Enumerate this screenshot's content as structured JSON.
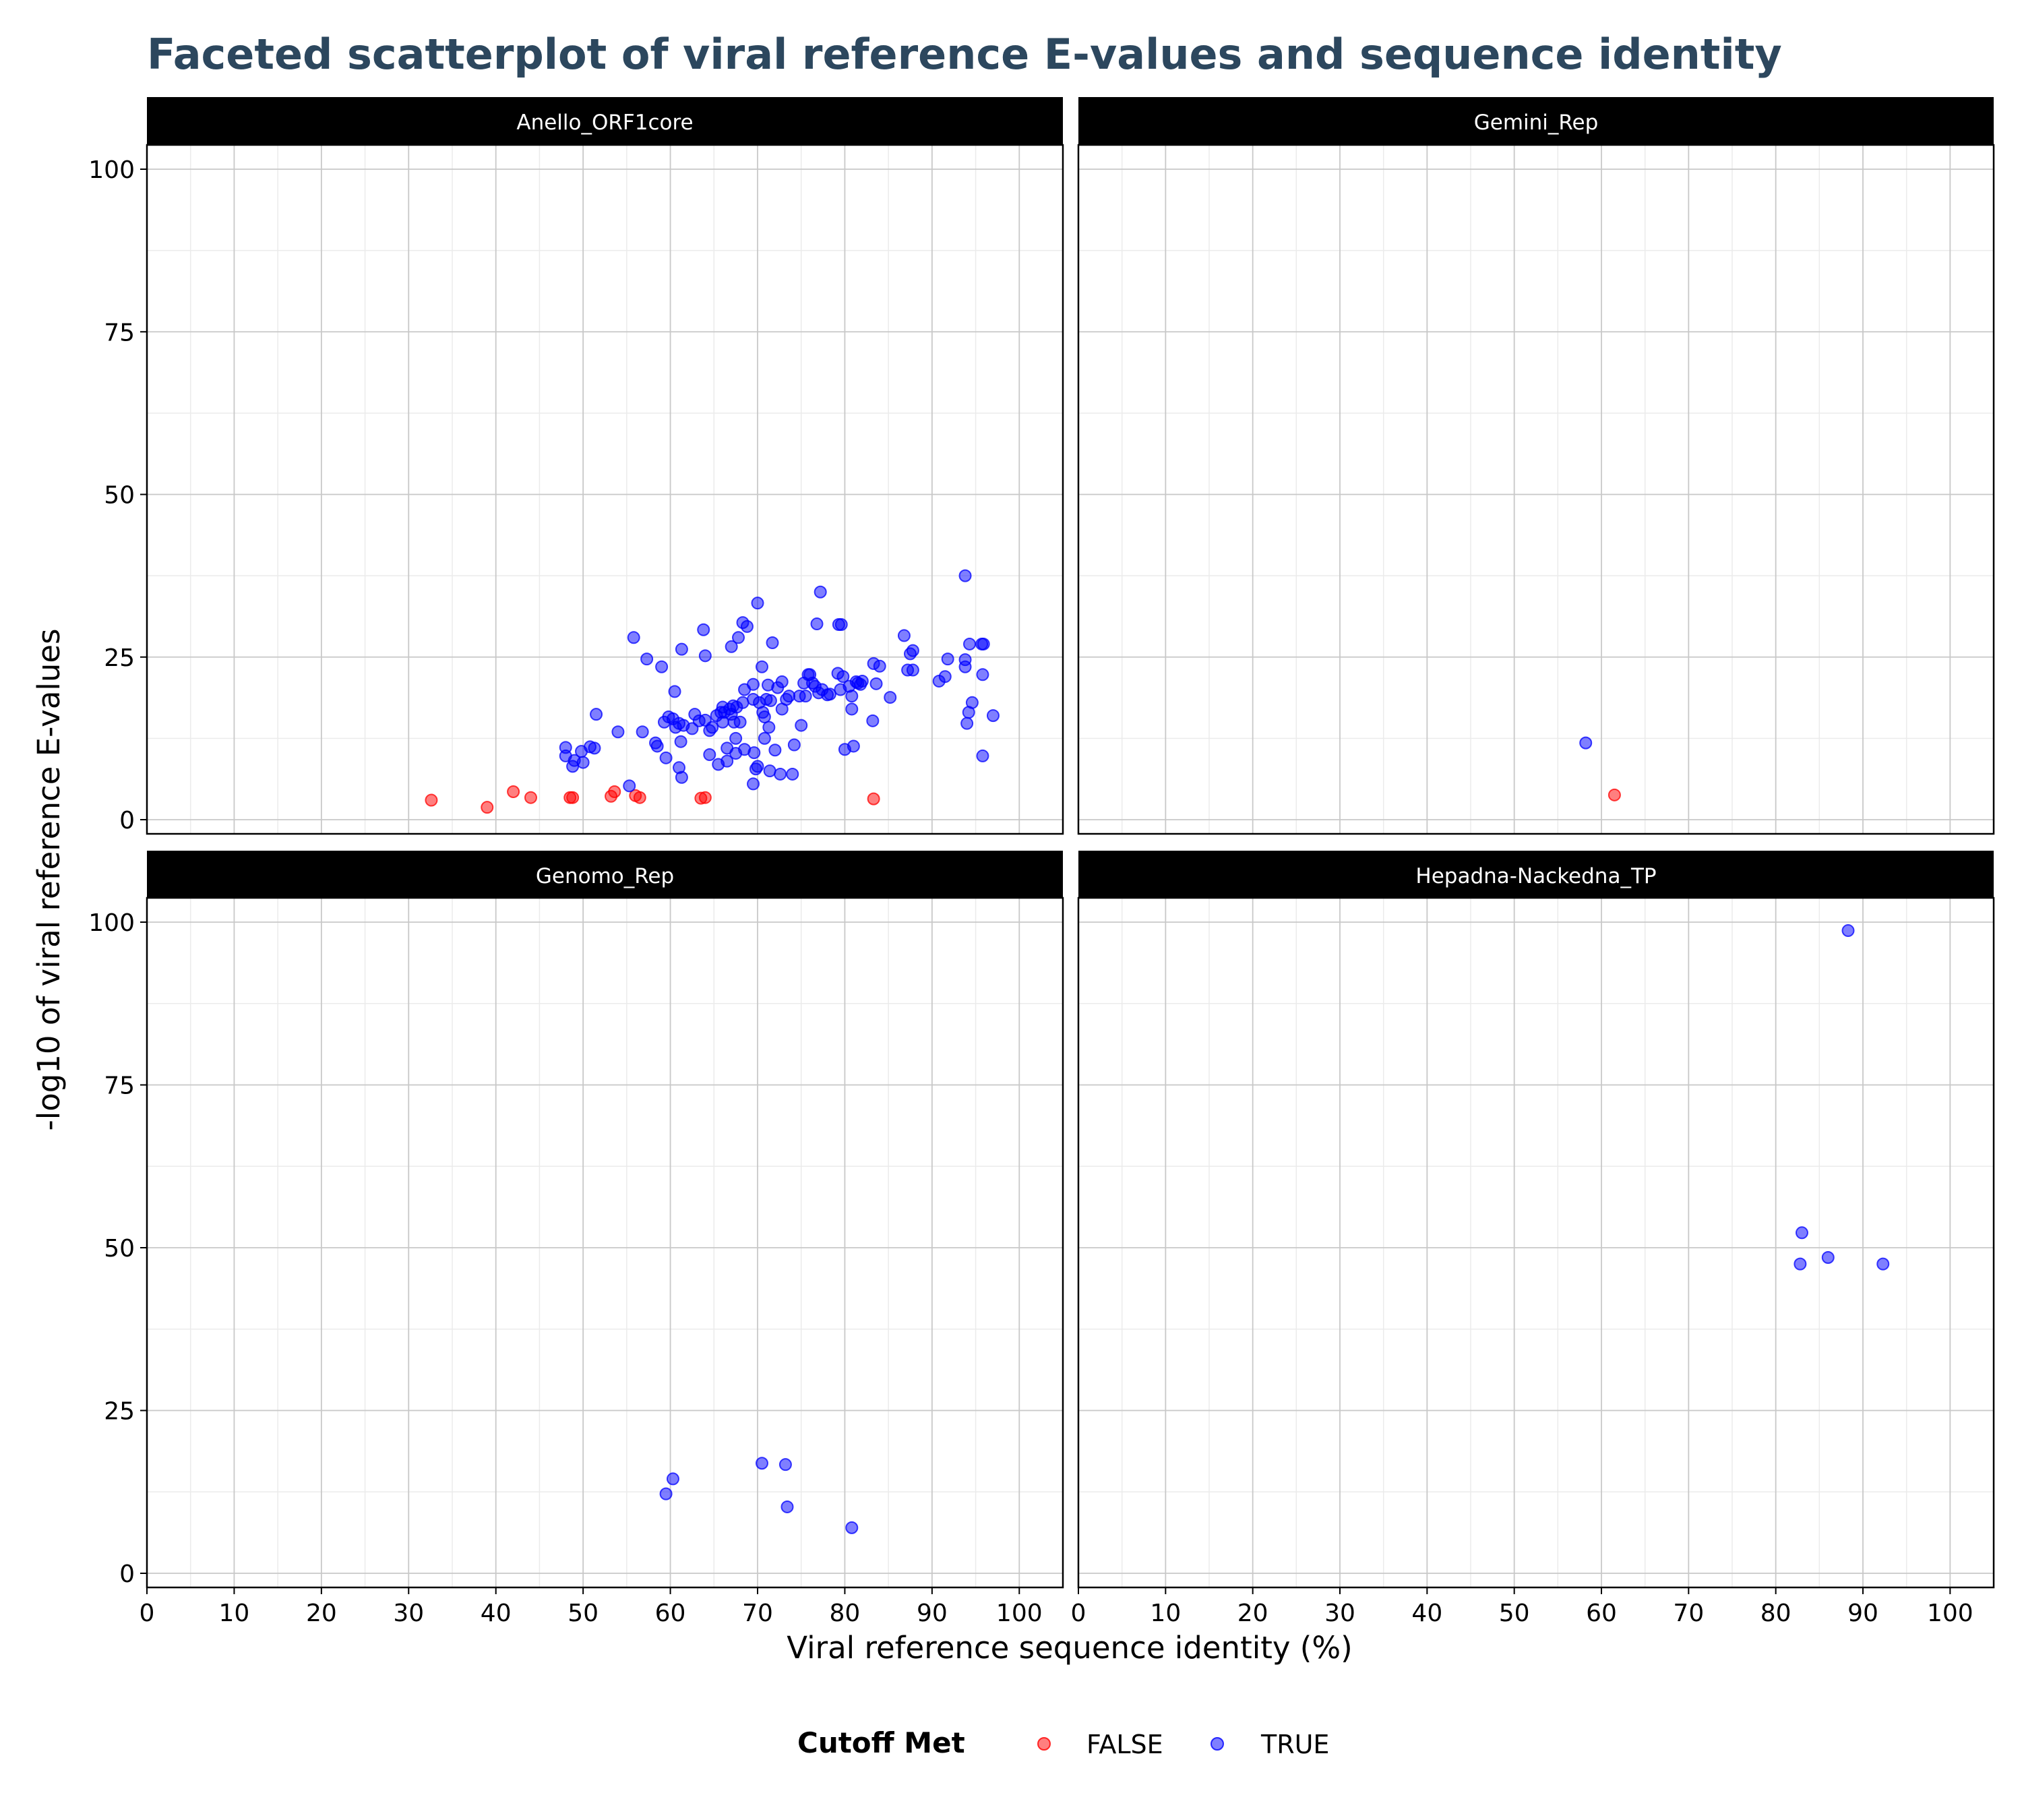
{
  "chart_data": {
    "type": "scatter",
    "title": "Faceted scatterplot of viral reference E-values and sequence identity",
    "xlabel": "Viral reference sequence identity (%)",
    "ylabel": "-log10 of viral reference E-values",
    "xlim": [
      0,
      105
    ],
    "ylim": [
      0,
      100
    ],
    "x_ticks": [
      "0",
      "10",
      "20",
      "30",
      "40",
      "50",
      "60",
      "70",
      "80",
      "90",
      "100"
    ],
    "y_ticks": [
      "0",
      "25",
      "50",
      "75",
      "100"
    ],
    "grid": true,
    "legend": {
      "title": "Cutoff Met",
      "position": "bottom",
      "entries": [
        {
          "label": "FALSE",
          "color": "#FF0000"
        },
        {
          "label": "TRUE",
          "color": "#0000FF"
        }
      ]
    },
    "colors": {
      "FALSE": "#FF0000",
      "TRUE": "#0000FF"
    },
    "facets": [
      {
        "name": "Anello_ORF1core",
        "points": [
          {
            "x": 32.6,
            "y": 3.0,
            "c": "FALSE"
          },
          {
            "x": 39.0,
            "y": 1.9,
            "c": "FALSE"
          },
          {
            "x": 42.0,
            "y": 4.3,
            "c": "FALSE"
          },
          {
            "x": 44.0,
            "y": 3.4,
            "c": "FALSE"
          },
          {
            "x": 48.5,
            "y": 3.4,
            "c": "FALSE"
          },
          {
            "x": 48.8,
            "y": 3.4,
            "c": "FALSE"
          },
          {
            "x": 53.2,
            "y": 3.6,
            "c": "FALSE"
          },
          {
            "x": 53.6,
            "y": 4.3,
            "c": "FALSE"
          },
          {
            "x": 56.0,
            "y": 3.7,
            "c": "FALSE"
          },
          {
            "x": 56.5,
            "y": 3.4,
            "c": "FALSE"
          },
          {
            "x": 63.5,
            "y": 3.3,
            "c": "FALSE"
          },
          {
            "x": 64.0,
            "y": 3.4,
            "c": "FALSE"
          },
          {
            "x": 83.3,
            "y": 3.2,
            "c": "FALSE"
          },
          {
            "x": 48.0,
            "y": 11.1,
            "c": "TRUE"
          },
          {
            "x": 48.0,
            "y": 9.8,
            "c": "TRUE"
          },
          {
            "x": 48.8,
            "y": 8.2,
            "c": "TRUE"
          },
          {
            "x": 49.0,
            "y": 9.1,
            "c": "TRUE"
          },
          {
            "x": 49.8,
            "y": 10.5,
            "c": "TRUE"
          },
          {
            "x": 50.0,
            "y": 8.8,
            "c": "TRUE"
          },
          {
            "x": 50.8,
            "y": 11.2,
            "c": "TRUE"
          },
          {
            "x": 51.3,
            "y": 11.0,
            "c": "TRUE"
          },
          {
            "x": 51.5,
            "y": 16.2,
            "c": "TRUE"
          },
          {
            "x": 54.0,
            "y": 13.5,
            "c": "TRUE"
          },
          {
            "x": 55.3,
            "y": 5.2,
            "c": "TRUE"
          },
          {
            "x": 55.8,
            "y": 28.0,
            "c": "TRUE"
          },
          {
            "x": 56.8,
            "y": 13.5,
            "c": "TRUE"
          },
          {
            "x": 57.3,
            "y": 24.7,
            "c": "TRUE"
          },
          {
            "x": 58.3,
            "y": 11.8,
            "c": "TRUE"
          },
          {
            "x": 58.5,
            "y": 11.3,
            "c": "TRUE"
          },
          {
            "x": 59.0,
            "y": 23.5,
            "c": "TRUE"
          },
          {
            "x": 59.3,
            "y": 15.0,
            "c": "TRUE"
          },
          {
            "x": 59.5,
            "y": 9.5,
            "c": "TRUE"
          },
          {
            "x": 59.8,
            "y": 15.8,
            "c": "TRUE"
          },
          {
            "x": 60.3,
            "y": 15.5,
            "c": "TRUE"
          },
          {
            "x": 60.5,
            "y": 19.7,
            "c": "TRUE"
          },
          {
            "x": 60.6,
            "y": 14.2,
            "c": "TRUE"
          },
          {
            "x": 61.0,
            "y": 14.8,
            "c": "TRUE"
          },
          {
            "x": 61.0,
            "y": 8.0,
            "c": "TRUE"
          },
          {
            "x": 61.2,
            "y": 12.0,
            "c": "TRUE"
          },
          {
            "x": 61.3,
            "y": 6.5,
            "c": "TRUE"
          },
          {
            "x": 61.3,
            "y": 26.2,
            "c": "TRUE"
          },
          {
            "x": 61.5,
            "y": 14.5,
            "c": "TRUE"
          },
          {
            "x": 62.5,
            "y": 14.0,
            "c": "TRUE"
          },
          {
            "x": 62.8,
            "y": 16.2,
            "c": "TRUE"
          },
          {
            "x": 63.3,
            "y": 15.2,
            "c": "TRUE"
          },
          {
            "x": 63.8,
            "y": 29.2,
            "c": "TRUE"
          },
          {
            "x": 64.0,
            "y": 25.2,
            "c": "TRUE"
          },
          {
            "x": 64.0,
            "y": 15.3,
            "c": "TRUE"
          },
          {
            "x": 64.5,
            "y": 13.7,
            "c": "TRUE"
          },
          {
            "x": 64.5,
            "y": 10.0,
            "c": "TRUE"
          },
          {
            "x": 64.8,
            "y": 14.2,
            "c": "TRUE"
          },
          {
            "x": 65.3,
            "y": 16.0,
            "c": "TRUE"
          },
          {
            "x": 65.5,
            "y": 8.5,
            "c": "TRUE"
          },
          {
            "x": 65.8,
            "y": 16.5,
            "c": "TRUE"
          },
          {
            "x": 66.0,
            "y": 15.0,
            "c": "TRUE"
          },
          {
            "x": 66.0,
            "y": 17.3,
            "c": "TRUE"
          },
          {
            "x": 66.2,
            "y": 16.5,
            "c": "TRUE"
          },
          {
            "x": 66.5,
            "y": 11.0,
            "c": "TRUE"
          },
          {
            "x": 66.5,
            "y": 9.0,
            "c": "TRUE"
          },
          {
            "x": 66.8,
            "y": 17.0,
            "c": "TRUE"
          },
          {
            "x": 67.0,
            "y": 26.6,
            "c": "TRUE"
          },
          {
            "x": 67.0,
            "y": 16.2,
            "c": "TRUE"
          },
          {
            "x": 67.2,
            "y": 17.5,
            "c": "TRUE"
          },
          {
            "x": 67.3,
            "y": 15.0,
            "c": "TRUE"
          },
          {
            "x": 67.5,
            "y": 10.2,
            "c": "TRUE"
          },
          {
            "x": 67.5,
            "y": 12.5,
            "c": "TRUE"
          },
          {
            "x": 67.6,
            "y": 17.3,
            "c": "TRUE"
          },
          {
            "x": 67.8,
            "y": 28.0,
            "c": "TRUE"
          },
          {
            "x": 68.0,
            "y": 15.0,
            "c": "TRUE"
          },
          {
            "x": 68.3,
            "y": 30.3,
            "c": "TRUE"
          },
          {
            "x": 68.3,
            "y": 18.0,
            "c": "TRUE"
          },
          {
            "x": 68.5,
            "y": 10.8,
            "c": "TRUE"
          },
          {
            "x": 68.5,
            "y": 20.0,
            "c": "TRUE"
          },
          {
            "x": 68.8,
            "y": 29.7,
            "c": "TRUE"
          },
          {
            "x": 69.5,
            "y": 18.5,
            "c": "TRUE"
          },
          {
            "x": 69.5,
            "y": 20.8,
            "c": "TRUE"
          },
          {
            "x": 69.5,
            "y": 5.5,
            "c": "TRUE"
          },
          {
            "x": 69.6,
            "y": 10.3,
            "c": "TRUE"
          },
          {
            "x": 69.8,
            "y": 7.8,
            "c": "TRUE"
          },
          {
            "x": 70.0,
            "y": 33.3,
            "c": "TRUE"
          },
          {
            "x": 70.0,
            "y": 8.2,
            "c": "TRUE"
          },
          {
            "x": 70.2,
            "y": 18.0,
            "c": "TRUE"
          },
          {
            "x": 70.5,
            "y": 23.5,
            "c": "TRUE"
          },
          {
            "x": 70.6,
            "y": 16.5,
            "c": "TRUE"
          },
          {
            "x": 70.8,
            "y": 15.8,
            "c": "TRUE"
          },
          {
            "x": 70.8,
            "y": 12.5,
            "c": "TRUE"
          },
          {
            "x": 71.0,
            "y": 18.5,
            "c": "TRUE"
          },
          {
            "x": 71.2,
            "y": 20.7,
            "c": "TRUE"
          },
          {
            "x": 71.3,
            "y": 14.2,
            "c": "TRUE"
          },
          {
            "x": 71.4,
            "y": 7.5,
            "c": "TRUE"
          },
          {
            "x": 71.5,
            "y": 18.3,
            "c": "TRUE"
          },
          {
            "x": 71.7,
            "y": 27.2,
            "c": "TRUE"
          },
          {
            "x": 72.0,
            "y": 10.7,
            "c": "TRUE"
          },
          {
            "x": 72.3,
            "y": 20.3,
            "c": "TRUE"
          },
          {
            "x": 72.6,
            "y": 7.0,
            "c": "TRUE"
          },
          {
            "x": 72.8,
            "y": 21.2,
            "c": "TRUE"
          },
          {
            "x": 72.8,
            "y": 17.0,
            "c": "TRUE"
          },
          {
            "x": 73.3,
            "y": 18.5,
            "c": "TRUE"
          },
          {
            "x": 73.6,
            "y": 19.0,
            "c": "TRUE"
          },
          {
            "x": 74.0,
            "y": 7.0,
            "c": "TRUE"
          },
          {
            "x": 74.2,
            "y": 11.5,
            "c": "TRUE"
          },
          {
            "x": 74.8,
            "y": 19.0,
            "c": "TRUE"
          },
          {
            "x": 75.0,
            "y": 14.5,
            "c": "TRUE"
          },
          {
            "x": 75.3,
            "y": 21.0,
            "c": "TRUE"
          },
          {
            "x": 75.5,
            "y": 19.0,
            "c": "TRUE"
          },
          {
            "x": 75.8,
            "y": 22.3,
            "c": "TRUE"
          },
          {
            "x": 76.0,
            "y": 22.3,
            "c": "TRUE"
          },
          {
            "x": 76.3,
            "y": 21.0,
            "c": "TRUE"
          },
          {
            "x": 76.6,
            "y": 20.5,
            "c": "TRUE"
          },
          {
            "x": 76.8,
            "y": 30.1,
            "c": "TRUE"
          },
          {
            "x": 77.0,
            "y": 19.5,
            "c": "TRUE"
          },
          {
            "x": 77.2,
            "y": 35.0,
            "c": "TRUE"
          },
          {
            "x": 77.4,
            "y": 20.0,
            "c": "TRUE"
          },
          {
            "x": 78.0,
            "y": 19.2,
            "c": "TRUE"
          },
          {
            "x": 78.3,
            "y": 19.3,
            "c": "TRUE"
          },
          {
            "x": 79.2,
            "y": 22.5,
            "c": "TRUE"
          },
          {
            "x": 79.3,
            "y": 30.0,
            "c": "TRUE"
          },
          {
            "x": 79.5,
            "y": 20.0,
            "c": "TRUE"
          },
          {
            "x": 79.6,
            "y": 30.0,
            "c": "TRUE"
          },
          {
            "x": 79.8,
            "y": 22.0,
            "c": "TRUE"
          },
          {
            "x": 80.0,
            "y": 10.8,
            "c": "TRUE"
          },
          {
            "x": 80.5,
            "y": 20.5,
            "c": "TRUE"
          },
          {
            "x": 80.8,
            "y": 19.0,
            "c": "TRUE"
          },
          {
            "x": 80.8,
            "y": 17.0,
            "c": "TRUE"
          },
          {
            "x": 81.0,
            "y": 11.3,
            "c": "TRUE"
          },
          {
            "x": 81.3,
            "y": 21.2,
            "c": "TRUE"
          },
          {
            "x": 81.5,
            "y": 21.0,
            "c": "TRUE"
          },
          {
            "x": 81.8,
            "y": 20.8,
            "c": "TRUE"
          },
          {
            "x": 82.0,
            "y": 21.3,
            "c": "TRUE"
          },
          {
            "x": 83.2,
            "y": 15.2,
            "c": "TRUE"
          },
          {
            "x": 83.3,
            "y": 24.0,
            "c": "TRUE"
          },
          {
            "x": 83.6,
            "y": 20.9,
            "c": "TRUE"
          },
          {
            "x": 84.0,
            "y": 23.6,
            "c": "TRUE"
          },
          {
            "x": 85.2,
            "y": 18.8,
            "c": "TRUE"
          },
          {
            "x": 86.8,
            "y": 28.3,
            "c": "TRUE"
          },
          {
            "x": 87.2,
            "y": 23.0,
            "c": "TRUE"
          },
          {
            "x": 87.5,
            "y": 25.5,
            "c": "TRUE"
          },
          {
            "x": 87.8,
            "y": 26.0,
            "c": "TRUE"
          },
          {
            "x": 87.8,
            "y": 23.0,
            "c": "TRUE"
          },
          {
            "x": 90.8,
            "y": 21.3,
            "c": "TRUE"
          },
          {
            "x": 91.5,
            "y": 22.0,
            "c": "TRUE"
          },
          {
            "x": 91.8,
            "y": 24.7,
            "c": "TRUE"
          },
          {
            "x": 93.8,
            "y": 37.5,
            "c": "TRUE"
          },
          {
            "x": 93.8,
            "y": 23.5,
            "c": "TRUE"
          },
          {
            "x": 93.8,
            "y": 24.6,
            "c": "TRUE"
          },
          {
            "x": 94.0,
            "y": 14.8,
            "c": "TRUE"
          },
          {
            "x": 94.2,
            "y": 16.5,
            "c": "TRUE"
          },
          {
            "x": 94.3,
            "y": 27.0,
            "c": "TRUE"
          },
          {
            "x": 94.6,
            "y": 18.0,
            "c": "TRUE"
          },
          {
            "x": 95.7,
            "y": 27.0,
            "c": "TRUE"
          },
          {
            "x": 95.8,
            "y": 9.8,
            "c": "TRUE"
          },
          {
            "x": 95.8,
            "y": 22.3,
            "c": "TRUE"
          },
          {
            "x": 95.9,
            "y": 27.0,
            "c": "TRUE"
          },
          {
            "x": 97.0,
            "y": 16.0,
            "c": "TRUE"
          }
        ]
      },
      {
        "name": "Gemini_Rep",
        "points": [
          {
            "x": 58.2,
            "y": 11.8,
            "c": "TRUE"
          },
          {
            "x": 61.5,
            "y": 3.8,
            "c": "FALSE"
          }
        ]
      },
      {
        "name": "Genomo_Rep",
        "points": [
          {
            "x": 59.5,
            "y": 12.2,
            "c": "TRUE"
          },
          {
            "x": 60.3,
            "y": 14.5,
            "c": "TRUE"
          },
          {
            "x": 70.5,
            "y": 16.9,
            "c": "TRUE"
          },
          {
            "x": 73.2,
            "y": 16.7,
            "c": "TRUE"
          },
          {
            "x": 73.4,
            "y": 10.2,
            "c": "TRUE"
          },
          {
            "x": 80.8,
            "y": 7.0,
            "c": "TRUE"
          }
        ]
      },
      {
        "name": "Hepadna-Nackedna_TP",
        "points": [
          {
            "x": 88.3,
            "y": 98.7,
            "c": "TRUE"
          },
          {
            "x": 83.0,
            "y": 52.3,
            "c": "TRUE"
          },
          {
            "x": 86.0,
            "y": 48.5,
            "c": "TRUE"
          },
          {
            "x": 82.8,
            "y": 47.5,
            "c": "TRUE"
          },
          {
            "x": 92.3,
            "y": 47.5,
            "c": "TRUE"
          }
        ]
      }
    ]
  }
}
